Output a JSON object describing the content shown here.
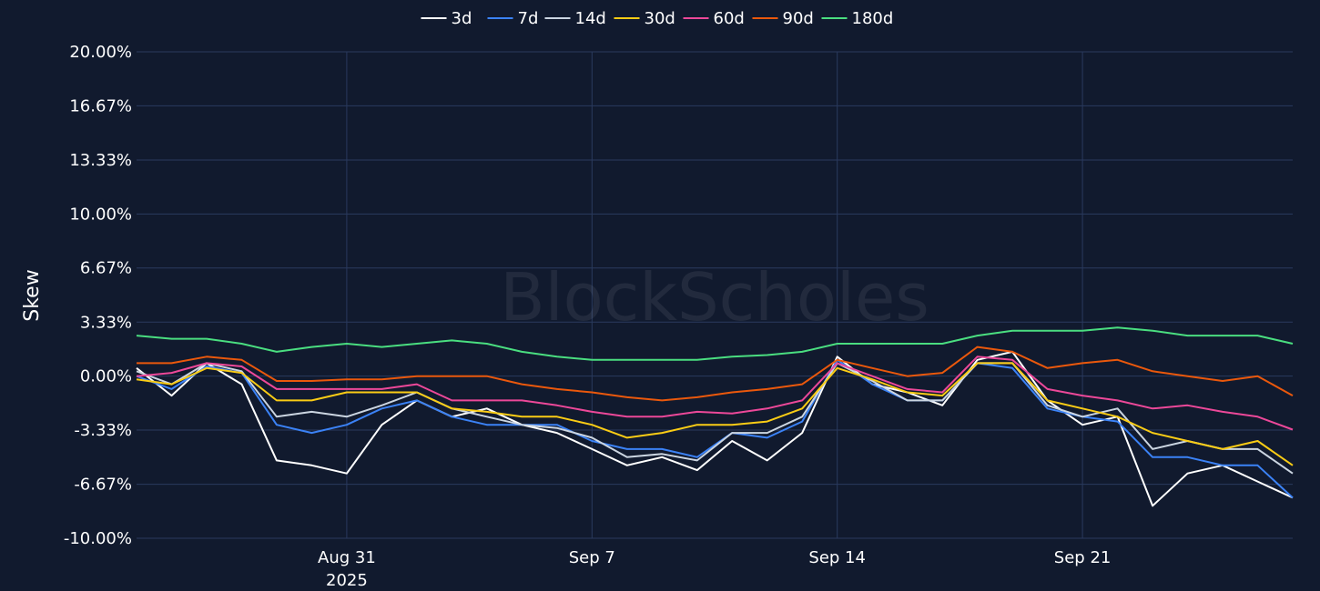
{
  "watermark": "BlockScholes",
  "chart_data": {
    "type": "line",
    "title": "",
    "xlabel": "",
    "ylabel": "Skew",
    "ylim": [
      -10,
      20
    ],
    "yticks": [
      20,
      16.67,
      13.33,
      10,
      6.67,
      3.33,
      0,
      -3.33,
      -6.67,
      -10
    ],
    "ytick_labels": [
      "20.00%",
      "16.67%",
      "13.33%",
      "10.00%",
      "6.67%",
      "3.33%",
      "0.00%",
      "-3.33%",
      "-6.67%",
      "-10.00%"
    ],
    "xlim": [
      "2025-08-25",
      "2025-09-27"
    ],
    "xticks": [
      {
        "date": "2025-08-31",
        "label": "Aug 31",
        "sublabel": "2025"
      },
      {
        "date": "2025-09-07",
        "label": "Sep 7",
        "sublabel": ""
      },
      {
        "date": "2025-09-14",
        "label": "Sep 14",
        "sublabel": ""
      },
      {
        "date": "2025-09-21",
        "label": "Sep 21",
        "sublabel": ""
      }
    ],
    "grid": true,
    "legend_position": "top-center",
    "x": [
      "2025-08-25",
      "2025-08-26",
      "2025-08-27",
      "2025-08-28",
      "2025-08-29",
      "2025-08-30",
      "2025-08-31",
      "2025-09-01",
      "2025-09-02",
      "2025-09-03",
      "2025-09-04",
      "2025-09-05",
      "2025-09-06",
      "2025-09-07",
      "2025-09-08",
      "2025-09-09",
      "2025-09-10",
      "2025-09-11",
      "2025-09-12",
      "2025-09-13",
      "2025-09-14",
      "2025-09-15",
      "2025-09-16",
      "2025-09-17",
      "2025-09-18",
      "2025-09-19",
      "2025-09-20",
      "2025-09-21",
      "2025-09-22",
      "2025-09-23",
      "2025-09-24",
      "2025-09-25",
      "2025-09-26",
      "2025-09-27"
    ],
    "series": [
      {
        "name": "3d",
        "color": "#ffffff",
        "values": [
          0.5,
          -1.2,
          0.8,
          -0.5,
          -5.2,
          -5.5,
          -6.0,
          -3.0,
          -1.5,
          -2.5,
          -2.0,
          -3.0,
          -3.5,
          -4.5,
          -5.5,
          -5.0,
          -5.8,
          -4.0,
          -5.2,
          -3.5,
          1.2,
          -0.5,
          -1.0,
          -1.8,
          1.0,
          1.5,
          -1.5,
          -3.0,
          -2.5,
          -8.0,
          -6.0,
          -5.5,
          -6.5,
          -7.5
        ]
      },
      {
        "name": "7d",
        "color": "#3b82f6",
        "values": [
          0.0,
          -0.8,
          0.6,
          0.2,
          -3.0,
          -3.5,
          -3.0,
          -2.0,
          -1.5,
          -2.5,
          -3.0,
          -3.0,
          -3.0,
          -4.0,
          -4.5,
          -4.5,
          -5.0,
          -3.5,
          -3.8,
          -2.8,
          1.0,
          -0.5,
          -1.5,
          -1.5,
          0.8,
          0.5,
          -2.0,
          -2.5,
          -2.8,
          -5.0,
          -5.0,
          -5.5,
          -5.5,
          -7.5
        ]
      },
      {
        "name": "14d",
        "color": "#cbd5e1",
        "values": [
          0.3,
          -0.5,
          0.8,
          0.3,
          -2.5,
          -2.2,
          -2.5,
          -1.8,
          -1.0,
          -2.0,
          -2.5,
          -3.0,
          -3.2,
          -3.8,
          -5.0,
          -4.8,
          -5.2,
          -3.5,
          -3.5,
          -2.5,
          0.8,
          -0.3,
          -1.5,
          -1.5,
          0.8,
          0.8,
          -1.8,
          -2.5,
          -2.0,
          -4.5,
          -4.0,
          -4.5,
          -4.5,
          -6.0
        ]
      },
      {
        "name": "30d",
        "color": "#facc15",
        "values": [
          -0.2,
          -0.5,
          0.5,
          0.2,
          -1.5,
          -1.5,
          -1.0,
          -1.0,
          -1.0,
          -2.0,
          -2.2,
          -2.5,
          -2.5,
          -3.0,
          -3.8,
          -3.5,
          -3.0,
          -3.0,
          -2.8,
          -2.0,
          0.5,
          -0.2,
          -1.0,
          -1.2,
          0.8,
          0.8,
          -1.5,
          -2.0,
          -2.5,
          -3.5,
          -4.0,
          -4.5,
          -4.0,
          -5.5
        ]
      },
      {
        "name": "60d",
        "color": "#ec4899",
        "values": [
          0.0,
          0.2,
          0.8,
          0.6,
          -0.8,
          -0.8,
          -0.8,
          -0.8,
          -0.5,
          -1.5,
          -1.5,
          -1.5,
          -1.8,
          -2.2,
          -2.5,
          -2.5,
          -2.2,
          -2.3,
          -2.0,
          -1.5,
          0.8,
          0.0,
          -0.8,
          -1.0,
          1.2,
          1.0,
          -0.8,
          -1.2,
          -1.5,
          -2.0,
          -1.8,
          -2.2,
          -2.5,
          -3.3
        ]
      },
      {
        "name": "90d",
        "color": "#ea580c",
        "values": [
          0.8,
          0.8,
          1.2,
          1.0,
          -0.3,
          -0.3,
          -0.2,
          -0.2,
          0.0,
          0.0,
          0.0,
          -0.5,
          -0.8,
          -1.0,
          -1.3,
          -1.5,
          -1.3,
          -1.0,
          -0.8,
          -0.5,
          1.0,
          0.5,
          0.0,
          0.2,
          1.8,
          1.5,
          0.5,
          0.8,
          1.0,
          0.3,
          0.0,
          -0.3,
          0.0,
          -1.2
        ]
      },
      {
        "name": "180d",
        "color": "#4ade80",
        "values": [
          2.5,
          2.3,
          2.3,
          2.0,
          1.5,
          1.8,
          2.0,
          1.8,
          2.0,
          2.2,
          2.0,
          1.5,
          1.2,
          1.0,
          1.0,
          1.0,
          1.0,
          1.2,
          1.3,
          1.5,
          2.0,
          2.0,
          2.0,
          2.0,
          2.5,
          2.8,
          2.8,
          2.8,
          3.0,
          2.8,
          2.5,
          2.5,
          2.5,
          2.0
        ]
      }
    ]
  }
}
